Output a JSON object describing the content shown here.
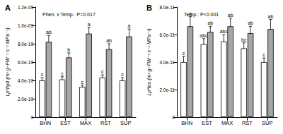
{
  "chart_data": [
    {
      "type": "bar",
      "title": "A",
      "annotation": "Phen. x Temp.: P=0.017",
      "y_label": "Lp*hyd (m³ g−FW⁻¹ s⁻¹ MPa⁻¹)",
      "categories": [
        "BHN",
        "EST",
        "MAX",
        "RST",
        "SUP"
      ],
      "series": [
        {
          "color": "#ffffff",
          "values": [
            4e-10,
            4.1e-10,
            3.3e-10,
            4.3e-10,
            4e-10
          ],
          "errors": [
            3e-11,
            3e-11,
            2e-11,
            3e-11,
            3e-11
          ],
          "letters": [
            "c",
            "c",
            "c",
            "c",
            "c"
          ]
        },
        {
          "color": "#a6a6a6",
          "values": [
            8.2e-10,
            6.5e-10,
            9.1e-10,
            7.4e-10,
            8.8e-10
          ],
          "errors": [
            7e-11,
            5e-11,
            7e-11,
            6e-11,
            8e-11
          ],
          "letters": [
            "ab",
            "b",
            "a",
            "ab",
            "a"
          ]
        }
      ],
      "ylim": [
        0,
        1.2e-09
      ],
      "yticks": [
        0,
        {
          "value": 2e-10,
          "label": "2.0e-10"
        },
        {
          "value": 4e-10,
          "label": "4.0e-10"
        },
        {
          "value": 6e-10,
          "label": "6.0e-10"
        },
        {
          "value": 8e-10,
          "label": "8.0e-10"
        },
        {
          "value": 1e-09,
          "label": "1.0e-09"
        },
        {
          "value": 1.2e-09,
          "label": "1.2e-09"
        }
      ],
      "grid": false
    },
    {
      "type": "bar",
      "title": "B",
      "annotation": "Temp.: P<0.001",
      "y_label": "Lp*tos (m³ g−FW⁻¹ s⁻¹ MPa⁻¹)",
      "categories": [
        "BHN",
        "EST",
        "MAX",
        "RST",
        "SUP"
      ],
      "series": [
        {
          "color": "#ffffff",
          "values": [
            4e-11,
            5.3e-11,
            5.5e-11,
            5e-11,
            4e-11
          ],
          "errors": [
            4e-12,
            4e-12,
            5e-12,
            4e-12,
            3e-12
          ],
          "letters": [
            "c",
            "abc",
            "abc",
            "bc",
            "c"
          ]
        },
        {
          "color": "#a6a6a6",
          "values": [
            6.6e-11,
            6.2e-11,
            6.6e-11,
            6.1e-11,
            6.4e-11
          ],
          "errors": [
            7e-12,
            4e-12,
            6e-12,
            5e-12,
            7e-12
          ],
          "letters": [
            "a",
            "ab",
            "ab",
            "ab",
            "ab"
          ]
        }
      ],
      "ylim": [
        0,
        8e-11
      ],
      "yticks": [
        0,
        {
          "value": 2e-11,
          "label": "2.0e-11"
        },
        {
          "value": 4e-11,
          "label": "4.0e-11"
        },
        {
          "value": 6e-11,
          "label": "6.0e-11"
        },
        {
          "value": 8e-11,
          "label": "8.0e-11"
        }
      ],
      "grid": false
    }
  ]
}
